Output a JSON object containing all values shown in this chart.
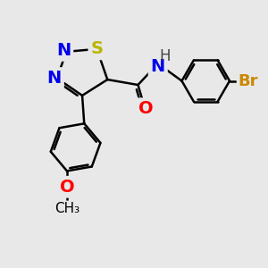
{
  "bg_color": "#e8e8e8",
  "bond_color": "#000000",
  "bond_width": 1.8,
  "dbo": 0.08,
  "atoms": {
    "S": {
      "color": "#b8b800",
      "fontsize": 14,
      "fontweight": "bold"
    },
    "N": {
      "color": "#0000ee",
      "fontsize": 14,
      "fontweight": "bold"
    },
    "O": {
      "color": "#ff0000",
      "fontsize": 14,
      "fontweight": "bold"
    },
    "Br": {
      "color": "#cc8800",
      "fontsize": 13,
      "fontweight": "bold"
    },
    "H": {
      "color": "#444444",
      "fontsize": 12,
      "fontweight": "normal"
    },
    "CH3": {
      "color": "#000000",
      "fontsize": 11,
      "fontweight": "normal"
    }
  },
  "figsize": [
    3.0,
    3.0
  ],
  "dpi": 100,
  "xlim": [
    0,
    10
  ],
  "ylim": [
    0,
    10
  ]
}
